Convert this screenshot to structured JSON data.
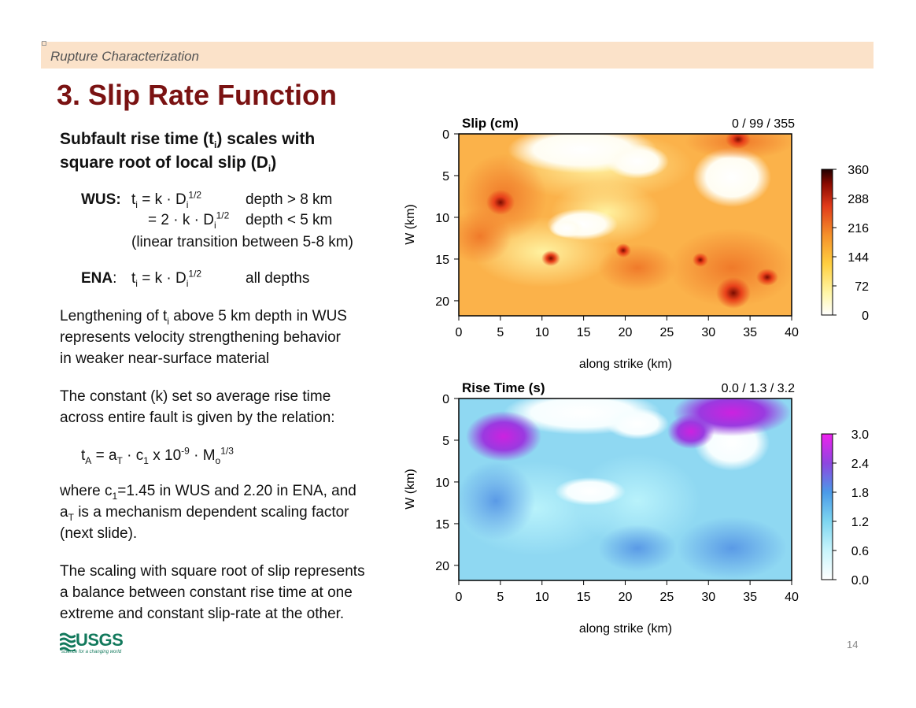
{
  "header": {
    "banner": "Rupture Characterization"
  },
  "title": "3. Slip Rate Function",
  "heading": {
    "line1_a": "Subfault rise time (t",
    "line1_sub": "i",
    "line1_b": ") scales with",
    "line2_a": "square root of local slip (D",
    "line2_sub": "i",
    "line2_b": ")"
  },
  "wus": {
    "label": "WUS:",
    "row1_eq": "= k · D",
    "row1_exp": "1/2",
    "row1_cond": "depth > 8 km",
    "row2_eq": "= 2 · k · D",
    "row2_exp": "1/2",
    "row2_cond": "depth < 5 km",
    "row3": "(linear transition between 5-8 km)"
  },
  "ena": {
    "label": "ENA",
    "eq": "= k · D",
    "exp": "1/2",
    "cond": "all depths"
  },
  "para1": {
    "a": "Lengthening of t",
    "sub": "i",
    "b": " above 5 km depth in WUS",
    "line2": "represents velocity strengthening behavior",
    "line3": "in weaker near-surface material"
  },
  "para2": {
    "line1": "The constant (k) set so average rise time",
    "line2": "across entire fault is given by the relation:"
  },
  "formula": {
    "t": "t",
    "t_sub": "A",
    "eq": "= a",
    "a_sub": "T",
    "rest": "· c",
    "c_sub": "1",
    "times": "x 10",
    "exp": "-9",
    "m": "· M",
    "m_sub": "o",
    "m_exp": "1/3"
  },
  "para3": {
    "a": "where c",
    "c_sub": "1",
    "b": "=1.45 in WUS and 2.20 in ENA, and",
    "l2a": "a",
    "l2sub": "T",
    "l2b": " is a mechanism dependent scaling factor",
    "line3": "(next slide)."
  },
  "para4": {
    "line1": "The scaling with square root of slip represents",
    "line2": "a balance between constant rise time at one",
    "line3": "extreme and constant slip-rate at the other."
  },
  "footer": {
    "logo": "USGS",
    "tagline": "science for a changing world",
    "page": "14"
  },
  "plots": [
    {
      "title": "Slip (cm)",
      "stats": "0 / 99 / 355",
      "xlabel": "along strike (km)",
      "ylabel": "W (km)",
      "xticks": [
        "0",
        "5",
        "10",
        "15",
        "20",
        "25",
        "30",
        "35",
        "40"
      ],
      "yticks": [
        "0",
        "5",
        "10",
        "15",
        "20"
      ],
      "colorbar_ticks": [
        "360",
        "288",
        "216",
        "144",
        "72",
        "0"
      ],
      "colormap": "white-yellow-orange-red-black"
    },
    {
      "title": "Rise Time (s)",
      "stats": "0.0 / 1.3 / 3.2",
      "xlabel": "along strike (km)",
      "ylabel": "W (km)",
      "xticks": [
        "0",
        "5",
        "10",
        "15",
        "20",
        "25",
        "30",
        "35",
        "40"
      ],
      "yticks": [
        "0",
        "5",
        "10",
        "15",
        "20"
      ],
      "colorbar_ticks": [
        "3.0",
        "2.4",
        "1.8",
        "1.2",
        "0.6",
        "0.0"
      ],
      "colormap": "white-cyan-blue-purple-magenta"
    }
  ]
}
